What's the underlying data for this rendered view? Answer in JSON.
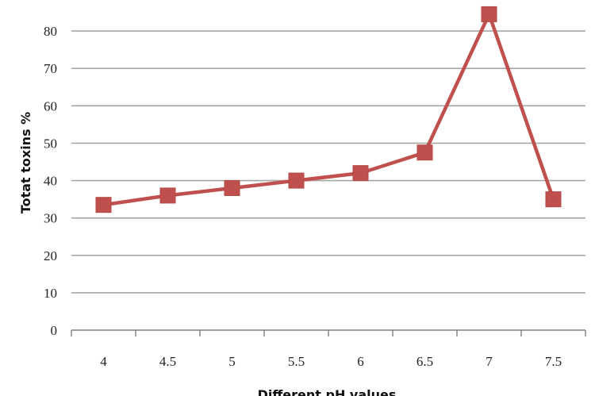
{
  "chart_data": {
    "type": "line",
    "title": "",
    "xlabel": "Different pH values",
    "ylabel": "Totat toxins %",
    "categories": [
      "4",
      "4.5",
      "5",
      "5.5",
      "6",
      "6.5",
      "7",
      "7.5"
    ],
    "series": [
      {
        "values": [
          33.5,
          36,
          38,
          40,
          42,
          47.5,
          84.5,
          35
        ]
      }
    ],
    "yticks": [
      "0",
      "10",
      "20",
      "30",
      "40",
      "50",
      "60",
      "70",
      "80",
      "90"
    ],
    "ylim": [
      0,
      90
    ],
    "grid": "horizontal",
    "legend": "none",
    "colors": {
      "line": "#c0504d",
      "marker": "#c0504d",
      "grid": "#a6a6a6",
      "axis": "#7f7f7f"
    }
  }
}
